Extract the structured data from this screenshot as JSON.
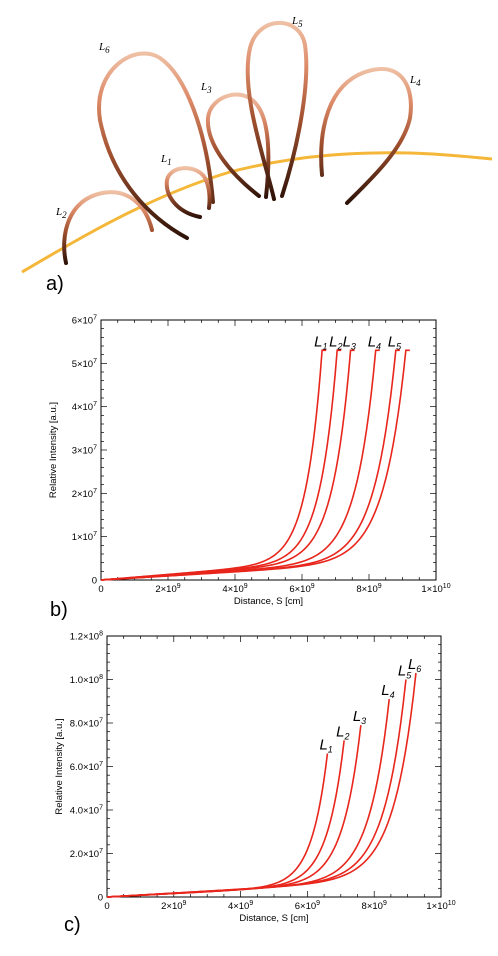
{
  "panels": {
    "a": {
      "label": "a)",
      "loop_labels": [
        "L1",
        "L2",
        "L3",
        "L4",
        "L5",
        "L6"
      ],
      "colors": {
        "loop_foot": "#2e1208",
        "loop_top": "#efc0a4",
        "surface": "#f4b73a"
      }
    },
    "b": {
      "label": "b)"
    },
    "c": {
      "label": "c)"
    }
  },
  "chart_data": [
    {
      "panel": "b",
      "type": "line",
      "xlabel": "Distance, S [cm]",
      "ylabel": "Relative Intensity [a.u.]",
      "xlim": [
        0,
        10000000000.0
      ],
      "ylim": [
        0,
        60000000.0
      ],
      "xticks": [
        {
          "value": 0,
          "mant": "0",
          "exp": ""
        },
        {
          "value": 2000000000.0,
          "mant": "2×10",
          "exp": "9"
        },
        {
          "value": 4000000000.0,
          "mant": "4×10",
          "exp": "9"
        },
        {
          "value": 6000000000.0,
          "mant": "6×10",
          "exp": "9"
        },
        {
          "value": 8000000000.0,
          "mant": "8×10",
          "exp": "9"
        },
        {
          "value": 10000000000.0,
          "mant": "1×10",
          "exp": "10"
        }
      ],
      "yticks": [
        {
          "value": 0,
          "mant": "0",
          "exp": ""
        },
        {
          "value": 10000000.0,
          "mant": "1×10",
          "exp": "7"
        },
        {
          "value": 20000000.0,
          "mant": "2×10",
          "exp": "7"
        },
        {
          "value": 30000000.0,
          "mant": "3×10",
          "exp": "7"
        },
        {
          "value": 40000000.0,
          "mant": "4×10",
          "exp": "7"
        },
        {
          "value": 50000000.0,
          "mant": "5×10",
          "exp": "7"
        },
        {
          "value": 60000000.0,
          "mant": "6×10",
          "exp": "7"
        }
      ],
      "grid": false,
      "color": "#e8261c",
      "series": [
        {
          "name": "L1",
          "x_end": 6600000000.0,
          "y_max": 53000000.0
        },
        {
          "name": "L2",
          "x_end": 7050000000.0,
          "y_max": 53000000.0
        },
        {
          "name": "L3",
          "x_end": 7450000000.0,
          "y_max": 53000000.0
        },
        {
          "name": "L4",
          "x_end": 8200000000.0,
          "y_max": 53000000.0
        },
        {
          "name": "L5",
          "x_end": 8800000000.0,
          "y_max": 53000000.0
        },
        {
          "name": "",
          "x_end": 9100000000.0,
          "y_max": 53000000.0
        }
      ]
    },
    {
      "panel": "c",
      "type": "line",
      "xlabel": "Distance, S [cm]",
      "ylabel": "Relative Intensity [a.u.]",
      "xlim": [
        0,
        10000000000.0
      ],
      "ylim": [
        0,
        120000000.0
      ],
      "xticks": [
        {
          "value": 0,
          "mant": "0",
          "exp": ""
        },
        {
          "value": 2000000000.0,
          "mant": "2×10",
          "exp": "9"
        },
        {
          "value": 4000000000.0,
          "mant": "4×10",
          "exp": "9"
        },
        {
          "value": 6000000000.0,
          "mant": "6×10",
          "exp": "9"
        },
        {
          "value": 8000000000.0,
          "mant": "8×10",
          "exp": "9"
        },
        {
          "value": 10000000000.0,
          "mant": "1×10",
          "exp": "10"
        }
      ],
      "yticks": [
        {
          "value": 0,
          "mant": "0",
          "exp": ""
        },
        {
          "value": 20000000.0,
          "mant": "2.0×10",
          "exp": "7"
        },
        {
          "value": 40000000.0,
          "mant": "4.0×10",
          "exp": "7"
        },
        {
          "value": 60000000.0,
          "mant": "6.0×10",
          "exp": "7"
        },
        {
          "value": 80000000.0,
          "mant": "8.0×10",
          "exp": "7"
        },
        {
          "value": 100000000.0,
          "mant": "1.0×10",
          "exp": "8"
        },
        {
          "value": 120000000.0,
          "mant": "1.2×10",
          "exp": "8"
        }
      ],
      "grid": false,
      "color": "#e8261c",
      "series": [
        {
          "name": "L1",
          "x_end": 6600000000.0,
          "y_max": 66000000.0
        },
        {
          "name": "L2",
          "x_end": 7100000000.0,
          "y_max": 72000000.0
        },
        {
          "name": "L3",
          "x_end": 7600000000.0,
          "y_max": 79000000.0
        },
        {
          "name": "L4",
          "x_end": 8450000000.0,
          "y_max": 91000000.0
        },
        {
          "name": "L5",
          "x_end": 8950000000.0,
          "y_max": 100000000.0
        },
        {
          "name": "L6",
          "x_end": 9250000000.0,
          "y_max": 103000000.0
        }
      ]
    }
  ]
}
